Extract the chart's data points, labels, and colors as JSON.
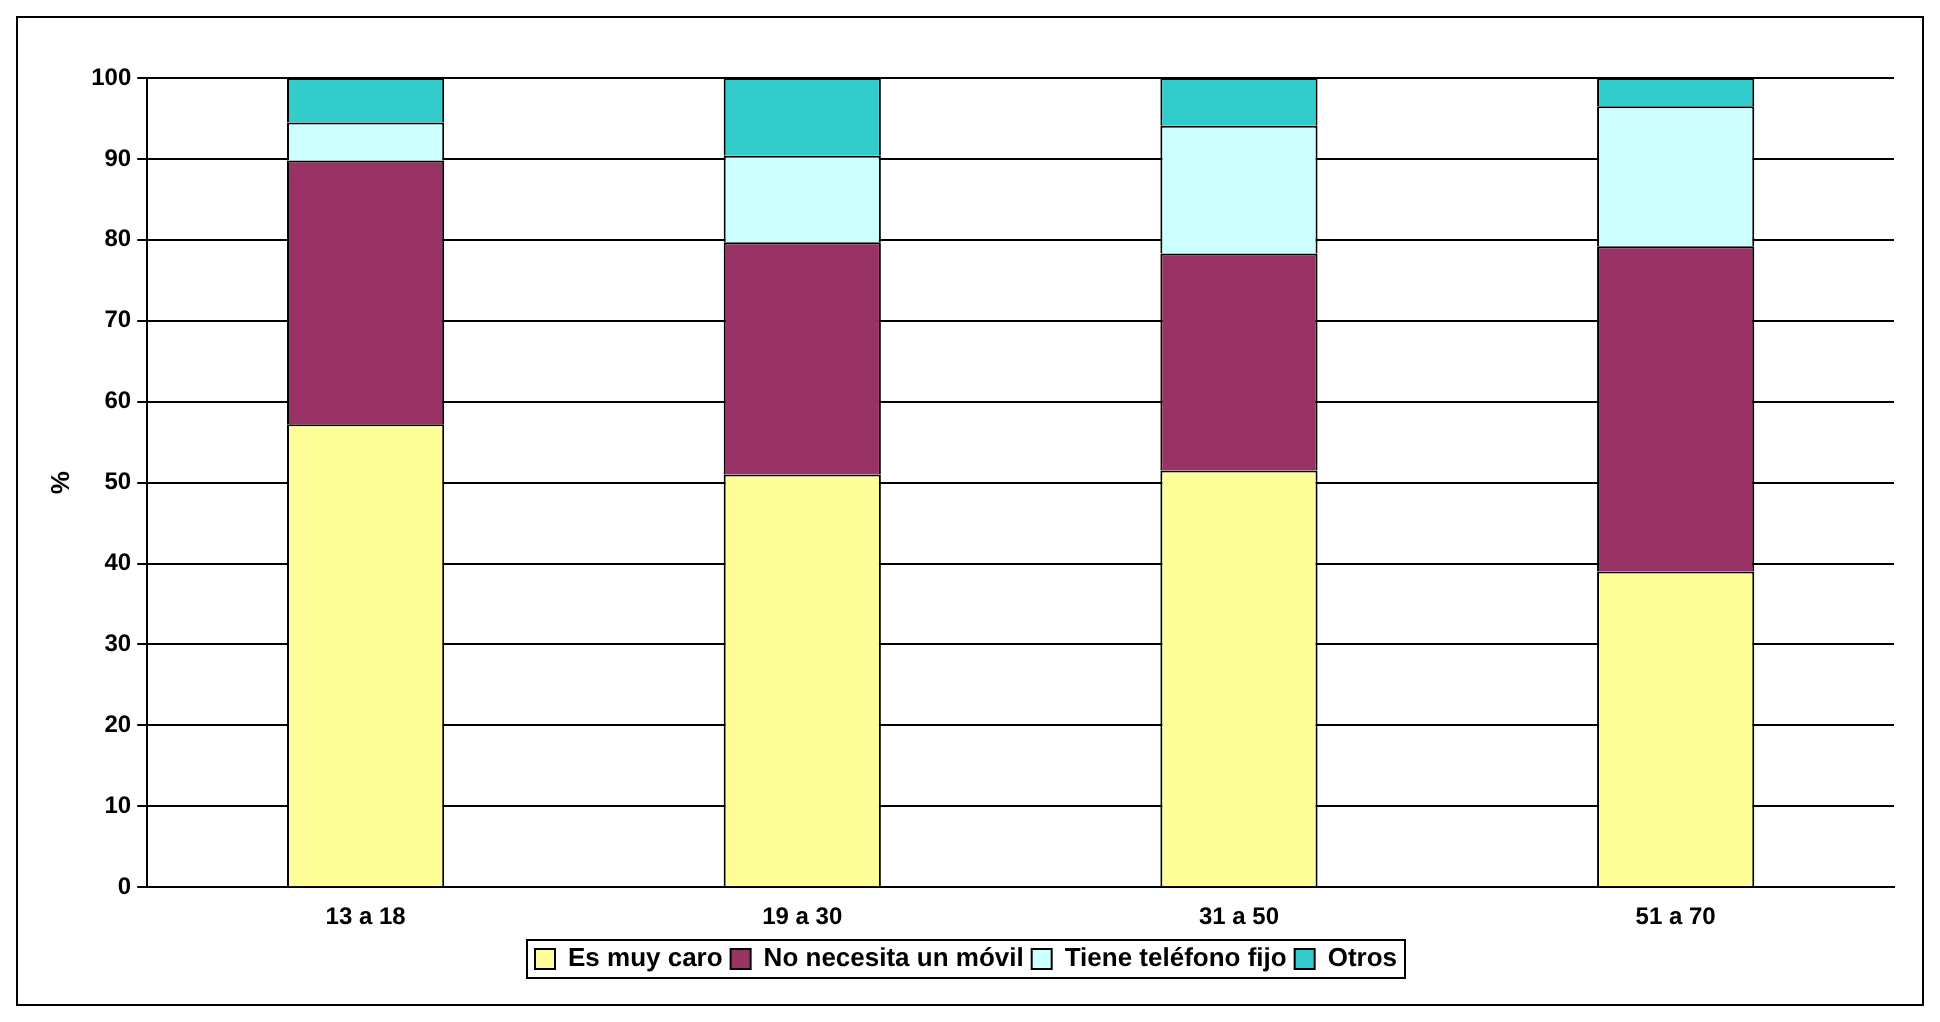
{
  "chart_data": {
    "type": "bar",
    "stacked": true,
    "ylabel": "%",
    "categories": [
      "13 a 18",
      "19 a 30",
      "31 a 50",
      "51 a 70"
    ],
    "series": [
      {
        "name": "Es muy caro",
        "color": "#ffff99",
        "values": [
          57.2,
          51.0,
          51.5,
          39.0
        ]
      },
      {
        "name": "No necesita un móvil",
        "color": "#993366",
        "values": [
          32.6,
          28.7,
          26.8,
          40.2
        ]
      },
      {
        "name": "Tiene teléfono fijo",
        "color": "#ccffff",
        "values": [
          4.7,
          10.7,
          15.8,
          17.3
        ]
      },
      {
        "name": "Otros",
        "color": "#33cccc",
        "values": [
          5.5,
          9.6,
          5.9,
          3.5
        ]
      }
    ],
    "ylim": [
      0,
      100
    ],
    "yticks": [
      0,
      10,
      20,
      30,
      40,
      50,
      60,
      70,
      80,
      90,
      100
    ],
    "grid": "y",
    "legend": "bottom"
  }
}
